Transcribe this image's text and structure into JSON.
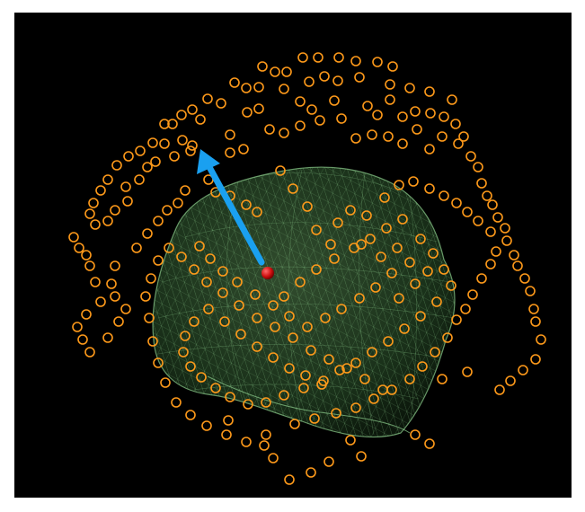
{
  "scene": {
    "background_color": "#000000",
    "brain_mesh_color": "#8fd08f",
    "sensor_color": "#ff9a1a",
    "arrow_color": "#1aa0f0",
    "dipole_color": "#d01010",
    "icons": {
      "sensor": "ring-marker-icon",
      "dipole": "sphere-icon",
      "arrow": "dipole-direction-arrow-icon"
    }
  }
}
